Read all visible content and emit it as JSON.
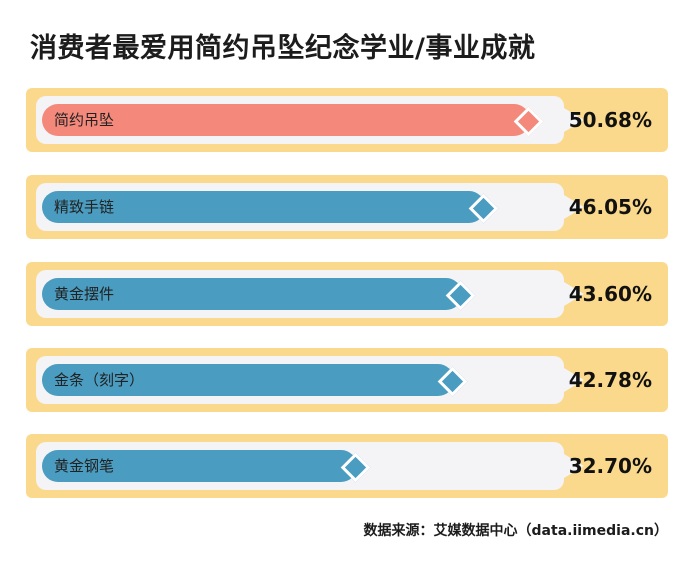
{
  "chart_data": {
    "type": "bar",
    "title": "消费者最爱用简约吊坠纪念学业/事业成就",
    "categories": [
      "简约吊坠",
      "精致手链",
      "黄金摆件",
      "金条（刻字）",
      "黄金钢笔"
    ],
    "values": [
      50.68,
      46.05,
      43.6,
      42.78,
      32.7
    ],
    "value_labels": [
      "50.68%",
      "46.05%",
      "43.60%",
      "42.78%",
      "32.70%"
    ],
    "unit": "%",
    "source": "数据来源：艾媒数据中心（data.iimedia.cn）",
    "colors": {
      "highlight": "#f4897b",
      "normal": "#4a9cc1",
      "row_background": "#fbd98c",
      "track": "#f4f3f6"
    }
  }
}
